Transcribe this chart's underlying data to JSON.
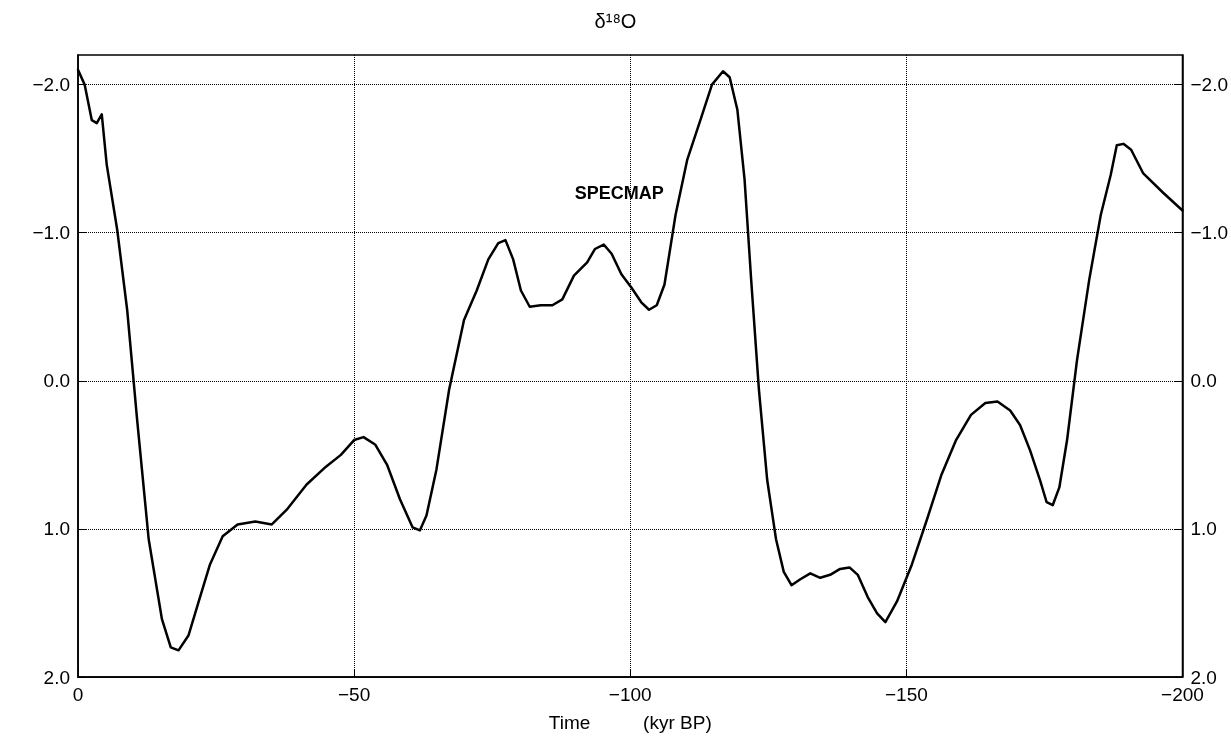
{
  "chart_data": {
    "type": "line",
    "title": "δ¹⁸O",
    "xlabel": "Time          (kyr BP)",
    "xlim": [
      0,
      -200
    ],
    "xticks": [
      {
        "value": 0,
        "label": "0"
      },
      {
        "value": -50,
        "label": "−50"
      },
      {
        "value": -100,
        "label": "−100"
      },
      {
        "value": -150,
        "label": "−150"
      },
      {
        "value": -200,
        "label": "−200"
      }
    ],
    "ylim": [
      2.0,
      -2.2
    ],
    "yticks": [
      {
        "value": -2,
        "label": "−2.0"
      },
      {
        "value": -1,
        "label": "−1.0"
      },
      {
        "value": 0,
        "label": "0.0"
      },
      {
        "value": 1,
        "label": "1.0"
      },
      {
        "value": 2,
        "label": "2.0"
      }
    ],
    "y2lim": [
      2.0,
      -2.2
    ],
    "y2ticks": [
      {
        "value": -2,
        "label": "−2.0"
      },
      {
        "value": -1,
        "label": "−1.0"
      },
      {
        "value": 0,
        "label": "0.0"
      },
      {
        "value": 1,
        "label": "1.0"
      },
      {
        "value": 2,
        "label": "2.0"
      }
    ],
    "grid": true,
    "marker": "none",
    "line_style": "solid",
    "series": [
      {
        "name": "SPECMAP",
        "color": "#000000",
        "x": [
          0,
          -1.2,
          -2.5,
          -3.4,
          -4.3,
          -5.2,
          -7.1,
          -8.9,
          -10.7,
          -12.8,
          -15.2,
          -16.8,
          -18.2,
          -20.0,
          -21.7,
          -23.9,
          -26.2,
          -28.9,
          -32.1,
          -35.1,
          -37.8,
          -41.4,
          -44.9,
          -47.6,
          -50.0,
          -51.7,
          -53.8,
          -56.0,
          -58.3,
          -60.6,
          -61.9,
          -63.1,
          -64.9,
          -67.2,
          -69.9,
          -72.2,
          -74.3,
          -76.1,
          -77.4,
          -78.8,
          -80.2,
          -81.8,
          -83.8,
          -85.9,
          -87.7,
          -89.8,
          -92.2,
          -93.6,
          -95.2,
          -96.6,
          -98.4,
          -100.2,
          -102.0,
          -103.4,
          -104.8,
          -106.2,
          -108.2,
          -110.3,
          -112.7,
          -114.8,
          -116.8,
          -118.0,
          -119.4,
          -120.7,
          -121.9,
          -123.3,
          -124.8,
          -126.4,
          -127.8,
          -129.2,
          -130.8,
          -132.6,
          -134.4,
          -136.2,
          -138.0,
          -139.7,
          -141.2,
          -143.0,
          -144.7,
          -146.2,
          -148.3,
          -151.0,
          -153.7,
          -156.3,
          -159.0,
          -161.7,
          -164.3,
          -166.5,
          -168.8,
          -170.6,
          -172.4,
          -174.2,
          -175.4,
          -176.5,
          -177.7,
          -179.1,
          -180.9,
          -183.1,
          -185.2,
          -187.0,
          -188.1,
          -189.3,
          -190.7,
          -192.9,
          -196.5,
          -200
        ],
        "values": [
          -2.1,
          -2.0,
          -1.76,
          -1.74,
          -1.8,
          -1.46,
          -1.02,
          -0.48,
          0.26,
          1.07,
          1.61,
          1.8,
          1.82,
          1.72,
          1.51,
          1.24,
          1.05,
          0.97,
          0.95,
          0.97,
          0.87,
          0.7,
          0.58,
          0.5,
          0.4,
          0.38,
          0.43,
          0.57,
          0.8,
          0.99,
          1.01,
          0.91,
          0.6,
          0.06,
          -0.41,
          -0.61,
          -0.82,
          -0.93,
          -0.95,
          -0.82,
          -0.61,
          -0.5,
          -0.51,
          -0.51,
          -0.55,
          -0.71,
          -0.8,
          -0.89,
          -0.92,
          -0.86,
          -0.72,
          -0.63,
          -0.53,
          -0.48,
          -0.51,
          -0.65,
          -1.12,
          -1.49,
          -1.76,
          -2.0,
          -2.09,
          -2.05,
          -1.83,
          -1.36,
          -0.68,
          0.06,
          0.67,
          1.07,
          1.29,
          1.38,
          1.34,
          1.3,
          1.33,
          1.31,
          1.27,
          1.26,
          1.31,
          1.46,
          1.57,
          1.63,
          1.49,
          1.24,
          0.94,
          0.64,
          0.4,
          0.23,
          0.15,
          0.14,
          0.2,
          0.3,
          0.47,
          0.67,
          0.82,
          0.84,
          0.72,
          0.4,
          -0.14,
          -0.68,
          -1.12,
          -1.39,
          -1.59,
          -1.6,
          -1.56,
          -1.4,
          -1.27,
          -1.15
        ]
      }
    ]
  }
}
